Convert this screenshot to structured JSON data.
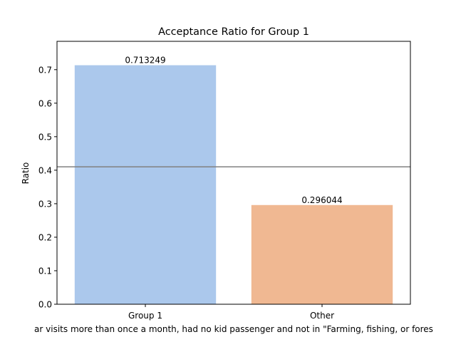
{
  "chart_data": {
    "type": "bar",
    "title": "Acceptance Ratio for Group 1",
    "xlabel": "ar visits more than once a month, had no kid passenger and not in \"Farming, fishing, or fores",
    "ylabel": "Ratio",
    "categories": [
      "Group 1",
      "Other"
    ],
    "values": [
      0.713249,
      0.296044
    ],
    "value_labels": [
      "0.713249",
      "0.296044"
    ],
    "bar_colors": [
      "#abc8ec",
      "#f0b892"
    ],
    "ylim": [
      0,
      0.784574
    ],
    "yticks": [
      0.0,
      0.1,
      0.2,
      0.3,
      0.4,
      0.5,
      0.6,
      0.7
    ],
    "ytick_labels": [
      "0.0",
      "0.1",
      "0.2",
      "0.3",
      "0.4",
      "0.5",
      "0.6",
      "0.7"
    ],
    "reference_line": {
      "value": 0.41,
      "color": "#808080"
    },
    "grid": false,
    "legend": "none"
  }
}
